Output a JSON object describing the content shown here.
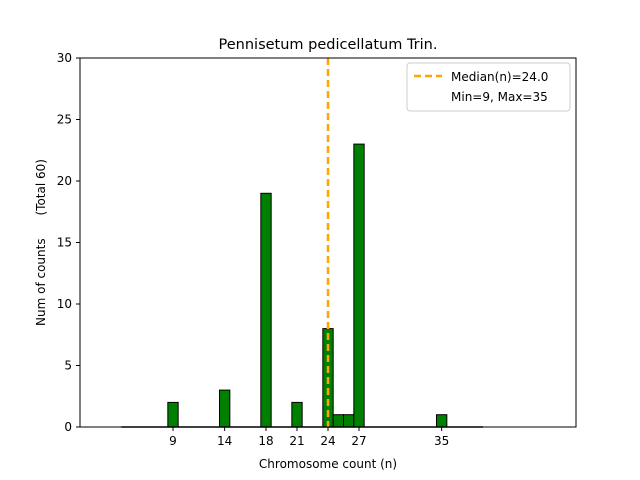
{
  "chart_data": {
    "type": "bar",
    "title": "Pennisetum pedicellatum Trin.",
    "xlabel": "Chromosome count (n)",
    "ylabel": "Num of counts      (Total 60)",
    "xlim": [
      0,
      48
    ],
    "ylim": [
      0,
      30
    ],
    "x_ticks": [
      9,
      14,
      18,
      21,
      24,
      27,
      35
    ],
    "y_ticks": [
      0,
      5,
      10,
      15,
      20,
      25,
      30
    ],
    "bins": [
      {
        "n": 9,
        "count": 2
      },
      {
        "n": 14,
        "count": 3
      },
      {
        "n": 18,
        "count": 19
      },
      {
        "n": 21,
        "count": 2
      },
      {
        "n": 24,
        "count": 8
      },
      {
        "n": 25,
        "count": 1
      },
      {
        "n": 26,
        "count": 1
      },
      {
        "n": 27,
        "count": 23
      },
      {
        "n": 35,
        "count": 1
      }
    ],
    "baseline_range": [
      4,
      39
    ],
    "median": 24.0,
    "legend": {
      "position": "top-right",
      "median_label": "Median(n)=24.0",
      "range_label": "Min=9, Max=35"
    },
    "colors": {
      "bar_fill": "#008000",
      "bar_edge": "#000000",
      "median_line": "#ffa500"
    }
  }
}
